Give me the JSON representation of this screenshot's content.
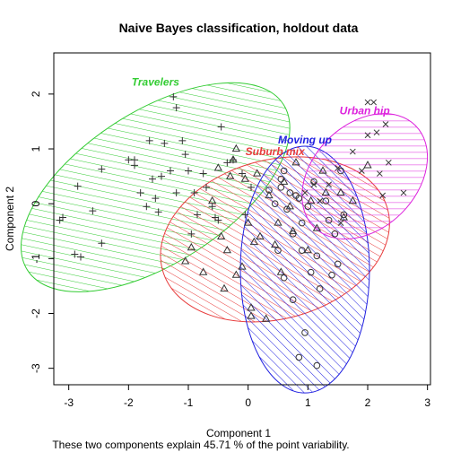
{
  "chart_data": {
    "type": "scatter",
    "title": "Naive Bayes classification, holdout data",
    "xlabel": "Component 1",
    "ylabel": "Component 2",
    "subtitle": "These two components explain 45.71 % of the point variability.",
    "xlim": [
      -3.25,
      3.05
    ],
    "ylim": [
      -3.3,
      2.75
    ],
    "xticks": [
      -3,
      -2,
      -1,
      0,
      1,
      2,
      3
    ],
    "yticks": [
      -3,
      -2,
      -1,
      0,
      1,
      2
    ],
    "grid": false,
    "clusters": [
      {
        "name": "Travelers",
        "color": "#33cc33",
        "marker": "plus",
        "ellipse": {
          "cx": -1.55,
          "cy": 0.3,
          "rx": 2.55,
          "ry": 1.38,
          "angle_deg": 33
        },
        "points": [
          [
            -3.15,
            -0.3
          ],
          [
            -3.1,
            -0.25
          ],
          [
            -2.9,
            -0.92
          ],
          [
            -2.8,
            -0.97
          ],
          [
            -2.85,
            0.32
          ],
          [
            -2.6,
            -0.13
          ],
          [
            -2.45,
            -0.72
          ],
          [
            -2.45,
            0.63
          ],
          [
            -2.0,
            0.8
          ],
          [
            -1.9,
            0.8
          ],
          [
            -1.9,
            0.7
          ],
          [
            -1.8,
            0.2
          ],
          [
            -1.7,
            -0.05
          ],
          [
            -1.65,
            1.15
          ],
          [
            -1.6,
            0.45
          ],
          [
            -1.55,
            0.1
          ],
          [
            -1.5,
            -0.15
          ],
          [
            -1.45,
            0.5
          ],
          [
            -1.4,
            1.1
          ],
          [
            -1.3,
            0.6
          ],
          [
            -1.25,
            1.95
          ],
          [
            -1.2,
            1.75
          ],
          [
            -1.2,
            0.2
          ],
          [
            -1.1,
            1.15
          ],
          [
            -1.05,
            0.9
          ],
          [
            -1.0,
            0.6
          ],
          [
            -0.9,
            0.2
          ],
          [
            -0.85,
            -0.2
          ],
          [
            -0.75,
            0.55
          ],
          [
            -0.7,
            0.3
          ],
          [
            -0.6,
            -0.05
          ],
          [
            -0.55,
            -0.25
          ],
          [
            -0.45,
            1.4
          ],
          [
            -0.35,
            0.75
          ],
          [
            -0.25,
            0.8
          ],
          [
            -0.1,
            0.55
          ],
          [
            0.05,
            0.3
          ],
          [
            -0.05,
            -0.2
          ],
          [
            -0.5,
            -0.3
          ],
          [
            -0.95,
            -0.55
          ]
        ]
      },
      {
        "name": "Suburb mix",
        "color": "#e83c3c",
        "marker": "triangle",
        "ellipse": {
          "cx": 0.45,
          "cy": -0.65,
          "rx": 1.95,
          "ry": 1.45,
          "angle_deg": 15
        },
        "points": [
          [
            -1.05,
            -1.05
          ],
          [
            -0.95,
            -0.8
          ],
          [
            -0.75,
            -1.25
          ],
          [
            -0.6,
            0.05
          ],
          [
            -0.5,
            0.65
          ],
          [
            -0.45,
            -0.6
          ],
          [
            -0.4,
            -1.55
          ],
          [
            -0.35,
            -0.85
          ],
          [
            -0.3,
            0.5
          ],
          [
            -0.25,
            0.8
          ],
          [
            -0.2,
            1.0
          ],
          [
            -0.2,
            -1.3
          ],
          [
            -0.1,
            -1.15
          ],
          [
            -0.05,
            0.45
          ],
          [
            0.0,
            -0.35
          ],
          [
            0.05,
            -1.9
          ],
          [
            0.05,
            -2.05
          ],
          [
            0.1,
            -0.7
          ],
          [
            0.15,
            0.55
          ],
          [
            0.2,
            -0.6
          ],
          [
            0.3,
            -2.1
          ],
          [
            0.35,
            0.15
          ],
          [
            0.45,
            -0.75
          ],
          [
            0.5,
            -0.35
          ],
          [
            0.55,
            -1.25
          ],
          [
            0.6,
            0.4
          ],
          [
            0.7,
            -0.05
          ],
          [
            0.75,
            -0.5
          ],
          [
            0.8,
            0.75
          ],
          [
            1.0,
            -0.85
          ],
          [
            1.05,
            0.05
          ],
          [
            1.15,
            -0.45
          ],
          [
            1.25,
            0.6
          ],
          [
            1.3,
            0.2
          ],
          [
            1.55,
            0.2
          ],
          [
            1.6,
            -0.25
          ],
          [
            1.75,
            0.05
          ],
          [
            2.0,
            0.7
          ]
        ]
      },
      {
        "name": "Moving up",
        "color": "#2020e0",
        "marker": "circle",
        "ellipse": {
          "cx": 0.95,
          "cy": -1.2,
          "rx": 1.08,
          "ry": 2.25,
          "angle_deg": 0
        },
        "points": [
          [
            0.35,
            0.25
          ],
          [
            0.45,
            0.0
          ],
          [
            0.55,
            0.3
          ],
          [
            0.55,
            0.45
          ],
          [
            0.6,
            0.6
          ],
          [
            0.65,
            -0.1
          ],
          [
            0.7,
            0.2
          ],
          [
            0.75,
            -0.55
          ],
          [
            0.8,
            0.15
          ],
          [
            0.85,
            0.1
          ],
          [
            0.9,
            -0.35
          ],
          [
            0.9,
            -0.85
          ],
          [
            0.95,
            -2.35
          ],
          [
            1.0,
            -0.05
          ],
          [
            1.05,
            -1.25
          ],
          [
            1.1,
            0.4
          ],
          [
            1.15,
            -0.95
          ],
          [
            1.2,
            -1.55
          ],
          [
            1.3,
            0.05
          ],
          [
            1.35,
            -0.3
          ],
          [
            1.4,
            -1.3
          ],
          [
            1.45,
            -0.55
          ],
          [
            1.5,
            -1.1
          ],
          [
            1.55,
            0.6
          ],
          [
            1.6,
            -0.2
          ],
          [
            0.6,
            -1.35
          ],
          [
            0.5,
            -0.85
          ],
          [
            0.75,
            -1.75
          ],
          [
            0.85,
            -2.8
          ],
          [
            1.15,
            -2.95
          ]
        ]
      },
      {
        "name": "Urban hip",
        "color": "#dd22dd",
        "marker": "cross",
        "ellipse": {
          "cx": 1.95,
          "cy": 0.5,
          "rx": 1.2,
          "ry": 0.95,
          "angle_deg": 45
        },
        "points": [
          [
            0.95,
            0.2
          ],
          [
            1.1,
            0.35
          ],
          [
            1.2,
            0.05
          ],
          [
            1.35,
            0.35
          ],
          [
            1.5,
            0.65
          ],
          [
            1.55,
            -0.35
          ],
          [
            1.75,
            0.95
          ],
          [
            1.9,
            0.6
          ],
          [
            2.0,
            1.25
          ],
          [
            2.0,
            1.85
          ],
          [
            2.1,
            1.85
          ],
          [
            2.15,
            1.3
          ],
          [
            2.2,
            0.55
          ],
          [
            2.25,
            0.15
          ],
          [
            2.3,
            1.45
          ],
          [
            2.35,
            0.75
          ],
          [
            2.6,
            0.2
          ]
        ]
      }
    ]
  }
}
